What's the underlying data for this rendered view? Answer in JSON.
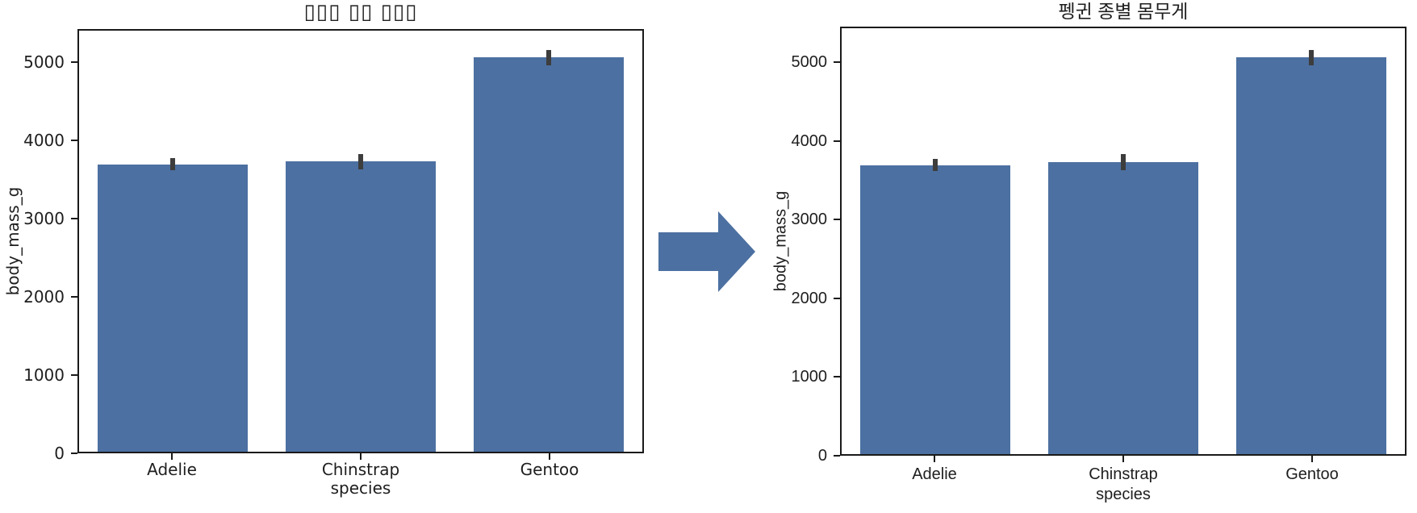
{
  "page": {
    "background": "#ffffff"
  },
  "arrow": {
    "color": "#4c70a1",
    "direction": "right"
  },
  "chart_data": [
    {
      "type": "bar",
      "title": "▯▯▯ ▯▯ ▯▯▯",
      "xlabel": "species",
      "ylabel": "body_mass_g",
      "categories": [
        "Adelie",
        "Chinstrap",
        "Gentoo"
      ],
      "values": [
        3700,
        3735,
        5075
      ],
      "error_low": [
        3625,
        3630,
        4975
      ],
      "error_high": [
        3780,
        3835,
        5175
      ],
      "yticks": [
        0,
        1000,
        2000,
        3000,
        4000,
        5000
      ],
      "ylim": [
        0,
        5420
      ],
      "bar_color": "#4c70a1",
      "error_color": "#3d3d3d",
      "grid": false,
      "legend": "none"
    },
    {
      "type": "bar",
      "title": "펭귄 종별 몸무게",
      "xlabel": "species",
      "ylabel": "body_mass_g",
      "categories": [
        "Adelie",
        "Chinstrap",
        "Gentoo"
      ],
      "values": [
        3700,
        3735,
        5075
      ],
      "error_low": [
        3625,
        3630,
        4975
      ],
      "error_high": [
        3780,
        3835,
        5175
      ],
      "yticks": [
        0,
        1000,
        2000,
        3000,
        4000,
        5000
      ],
      "ylim": [
        0,
        5450
      ],
      "bar_color": "#4c70a1",
      "error_color": "#3d3d3d",
      "grid": false,
      "legend": "none"
    }
  ]
}
